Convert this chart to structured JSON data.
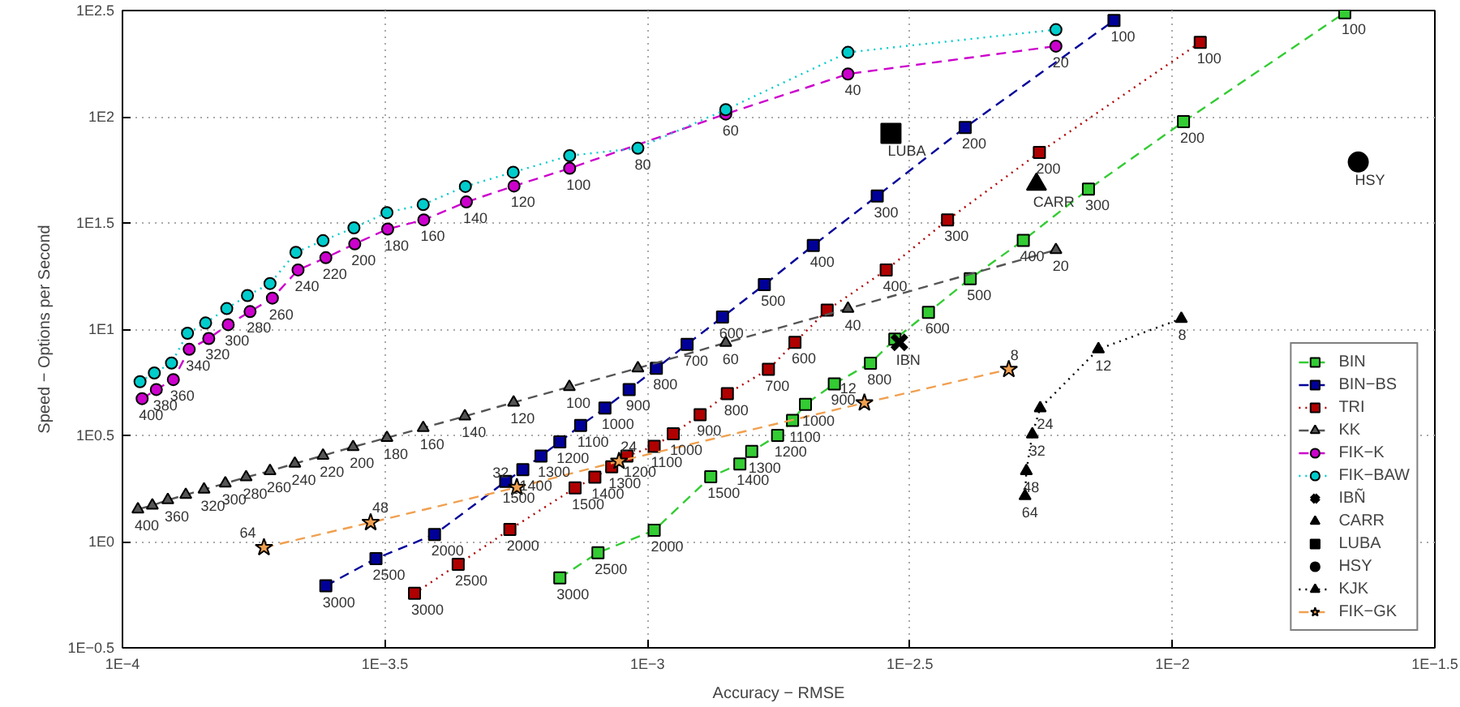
{
  "chart_data": {
    "type": "line",
    "xlabel": "Accuracy − RMSE",
    "ylabel": "Speed − Options per Second",
    "log": "xy",
    "xlim": [
      0.0001,
      0.0316228
    ],
    "ylim": [
      0.316228,
      316.228
    ],
    "xticks": [
      {
        "value": 0.0001,
        "label": "1E−4"
      },
      {
        "value": 0.000316228,
        "label": "1E−3.5"
      },
      {
        "value": 0.001,
        "label": "1E−3"
      },
      {
        "value": 0.00316228,
        "label": "1E−2.5"
      },
      {
        "value": 0.01,
        "label": "1E−2"
      },
      {
        "value": 0.0316228,
        "label": "1E−1.5"
      }
    ],
    "yticks": [
      {
        "value": 0.316228,
        "label": "1E−0.5"
      },
      {
        "value": 1,
        "label": "1E0"
      },
      {
        "value": 3.16228,
        "label": "1E0.5"
      },
      {
        "value": 10,
        "label": "1E1"
      },
      {
        "value": 31.6228,
        "label": "1E1.5"
      },
      {
        "value": 100,
        "label": "1E2"
      },
      {
        "value": 316.228,
        "label": "1E2.5"
      }
    ],
    "grid": true,
    "legend": "bottom right",
    "series": [
      {
        "name": "BIN",
        "type": "line",
        "marker": "square",
        "line_style": "dashed",
        "color": "#33cc33",
        "x": [
          0.000681,
          0.000805,
          0.00103,
          0.00132,
          0.0015,
          0.00158,
          0.00177,
          0.00189,
          0.002,
          0.00227,
          0.00266,
          0.00296,
          0.00343,
          0.00412,
          0.0052,
          0.00692,
          0.0105,
          0.0213
        ],
        "values": [
          0.675,
          0.887,
          1.13,
          2.02,
          2.32,
          2.66,
          3.16,
          3.72,
          4.43,
          5.53,
          6.92,
          8.97,
          12.0,
          17.3,
          26.2,
          45.6,
          94.8,
          309
        ]
      },
      {
        "name": "BIN−BS",
        "type": "line",
        "marker": "square",
        "line_style": "dashed",
        "color": "#000099",
        "x": [
          0.000244,
          0.000304,
          0.000393,
          0.000537,
          0.000579,
          0.000627,
          0.000681,
          0.000746,
          0.00083,
          0.000923,
          0.00104,
          0.00119,
          0.00139,
          0.00167,
          0.00207,
          0.00274,
          0.00403,
          0.00774
        ],
        "values": [
          0.619,
          0.832,
          1.08,
          1.92,
          2.18,
          2.53,
          2.95,
          3.52,
          4.25,
          5.2,
          6.55,
          8.49,
          11.4,
          16.2,
          24.8,
          42.4,
          89.1,
          284
        ]
      },
      {
        "name": "TRI",
        "type": "line",
        "marker": "square",
        "line_style": "dotted",
        "color": "#b00000",
        "x": [
          0.00036,
          0.000436,
          0.000547,
          0.000728,
          0.000794,
          0.000855,
          0.000914,
          0.00103,
          0.00112,
          0.00126,
          0.00142,
          0.0017,
          0.00191,
          0.0022,
          0.00285,
          0.00373,
          0.00558,
          0.0113
        ],
        "values": [
          0.571,
          0.782,
          1.14,
          1.79,
          2.01,
          2.25,
          2.53,
          2.81,
          3.22,
          3.96,
          4.97,
          6.47,
          8.67,
          12.3,
          19.0,
          32.7,
          67.9,
          224
        ]
      },
      {
        "name": "KK",
        "type": "line",
        "marker": "triangle",
        "line_style": "dashed",
        "color": "#555555",
        "x": [
          0.000107,
          0.000114,
          0.000122,
          0.000132,
          0.000143,
          0.000157,
          0.000172,
          0.000191,
          0.000213,
          0.000241,
          0.000275,
          0.000319,
          0.000374,
          0.000449,
          0.000556,
          0.00071,
          0.000959,
          0.00141,
          0.00241,
          0.006
        ],
        "values": [
          1.42,
          1.48,
          1.57,
          1.66,
          1.76,
          1.88,
          2.01,
          2.15,
          2.33,
          2.54,
          2.79,
          3.08,
          3.43,
          3.89,
          4.52,
          5.35,
          6.55,
          8.63,
          12.5,
          23.6
        ]
      },
      {
        "name": "FIK−K",
        "type": "line",
        "marker": "circle",
        "line_style": "dashed",
        "color": "#cc00cc",
        "x": [
          0.000109,
          0.000116,
          0.000125,
          0.000134,
          0.000146,
          0.000159,
          0.000175,
          0.000193,
          0.000216,
          0.000244,
          0.000277,
          0.00032,
          0.000375,
          0.000452,
          0.000557,
          0.000711,
          0.00141,
          0.00241,
          0.006
        ],
        "values": [
          4.71,
          5.2,
          5.79,
          8.04,
          9.04,
          10.5,
          12.1,
          14.0,
          19.0,
          21.7,
          25.2,
          29.6,
          32.7,
          39.7,
          47.2,
          57.2,
          103,
          159,
          215
        ]
      },
      {
        "name": "FIK−BAW",
        "type": "line",
        "marker": "circle",
        "line_style": "dotted",
        "color": "#00cccc",
        "x": [
          0.000108,
          0.000115,
          0.000124,
          0.000133,
          0.000144,
          0.000158,
          0.000173,
          0.000191,
          0.000214,
          0.000241,
          0.000276,
          0.000319,
          0.000374,
          0.00045,
          0.000555,
          0.000711,
          0.000959,
          0.00141,
          0.00241,
          0.006
        ],
        "values": [
          5.66,
          6.22,
          6.93,
          9.57,
          10.7,
          12.5,
          14.4,
          16.4,
          23.0,
          26.1,
          30.0,
          35.4,
          38.6,
          47.0,
          54.8,
          65.6,
          71.1,
          108,
          201,
          257
        ]
      },
      {
        "name": "IBÑ",
        "type": "scatter",
        "marker": "cross",
        "color": "#000000",
        "x": [
          0.00302
        ],
        "values": [
          8.67
        ]
      },
      {
        "name": "CARR",
        "type": "scatter",
        "marker": "triangle",
        "color": "#000000",
        "x": [
          0.00551
        ],
        "values": [
          48.1
        ]
      },
      {
        "name": "LUBA",
        "type": "scatter",
        "marker": "square",
        "color": "#000000",
        "x": [
          0.00291
        ],
        "values": [
          83.6
        ]
      },
      {
        "name": "HSY",
        "type": "scatter",
        "marker": "circle",
        "color": "#000000",
        "x": [
          0.0226
        ],
        "values": [
          61.2
        ]
      },
      {
        "name": "KJK",
        "type": "line",
        "marker": "triangle",
        "line_style": "dotted",
        "color": "#000000",
        "x": [
          0.00524,
          0.00527,
          0.00541,
          0.0056,
          0.00723,
          0.0104
        ],
        "values": [
          1.64,
          2.15,
          3.2,
          4.25,
          8.05,
          11.2
        ]
      },
      {
        "name": "FIK−GK",
        "type": "line",
        "marker": "star",
        "line_style": "dashed",
        "color": "#f0a050",
        "x": [
          0.000186,
          0.000297,
          0.000564,
          0.000883,
          0.00259,
          0.00488
        ],
        "values": [
          0.938,
          1.23,
          1.8,
          2.39,
          4.5,
          6.47
        ]
      }
    ],
    "annotations": [
      {
        "text": "3000",
        "x": 0.000681,
        "y": 0.675
      },
      {
        "text": "2500",
        "x": 0.000805,
        "y": 0.887
      },
      {
        "text": "2000",
        "x": 0.00103,
        "y": 1.13
      },
      {
        "text": "1500",
        "x": 0.00132,
        "y": 2.02
      },
      {
        "text": "1400",
        "x": 0.0015,
        "y": 2.32
      },
      {
        "text": "1300",
        "x": 0.00158,
        "y": 2.66
      },
      {
        "text": "1200",
        "x": 0.00177,
        "y": 3.16
      },
      {
        "text": "1100",
        "x": 0.00189,
        "y": 3.72
      },
      {
        "text": "1000",
        "x": 0.002,
        "y": 4.43
      },
      {
        "text": "900",
        "x": 0.00227,
        "y": 5.53
      },
      {
        "text": "800",
        "x": 0.00266,
        "y": 6.92
      },
      {
        "text": "600",
        "x": 0.00343,
        "y": 12.0
      },
      {
        "text": "500",
        "x": 0.00412,
        "y": 17.3
      },
      {
        "text": "400",
        "x": 0.0052,
        "y": 26.2
      },
      {
        "text": "300",
        "x": 0.00692,
        "y": 45.6
      },
      {
        "text": "200",
        "x": 0.0105,
        "y": 94.8
      },
      {
        "text": "100",
        "x": 0.0213,
        "y": 309
      },
      {
        "text": "3000",
        "x": 0.000244,
        "y": 0.619
      },
      {
        "text": "2500",
        "x": 0.000304,
        "y": 0.832
      },
      {
        "text": "2000",
        "x": 0.000393,
        "y": 1.08
      },
      {
        "text": "1500",
        "x": 0.000537,
        "y": 1.92
      },
      {
        "text": "1400",
        "x": 0.000579,
        "y": 2.18
      },
      {
        "text": "1300",
        "x": 0.000627,
        "y": 2.53
      },
      {
        "text": "1200",
        "x": 0.000681,
        "y": 2.95
      },
      {
        "text": "1100",
        "x": 0.000746,
        "y": 3.52
      },
      {
        "text": "1000",
        "x": 0.00083,
        "y": 4.25
      },
      {
        "text": "900",
        "x": 0.000923,
        "y": 5.2
      },
      {
        "text": "800",
        "x": 0.00104,
        "y": 6.55
      },
      {
        "text": "700",
        "x": 0.00119,
        "y": 8.49
      },
      {
        "text": "600",
        "x": 0.00139,
        "y": 11.4
      },
      {
        "text": "500",
        "x": 0.00167,
        "y": 16.2
      },
      {
        "text": "400",
        "x": 0.00207,
        "y": 24.8
      },
      {
        "text": "300",
        "x": 0.00274,
        "y": 42.4
      },
      {
        "text": "200",
        "x": 0.00403,
        "y": 89.1
      },
      {
        "text": "100",
        "x": 0.00774,
        "y": 284
      },
      {
        "text": "3000",
        "x": 0.00036,
        "y": 0.571
      },
      {
        "text": "2500",
        "x": 0.000436,
        "y": 0.782
      },
      {
        "text": "2000",
        "x": 0.000547,
        "y": 1.14
      },
      {
        "text": "1500",
        "x": 0.000728,
        "y": 1.79
      },
      {
        "text": "1400",
        "x": 0.000794,
        "y": 2.01
      },
      {
        "text": "1300",
        "x": 0.000855,
        "y": 2.25
      },
      {
        "text": "1200",
        "x": 0.000914,
        "y": 2.53
      },
      {
        "text": "1100",
        "x": 0.00103,
        "y": 2.81
      },
      {
        "text": "1000",
        "x": 0.00112,
        "y": 3.22
      },
      {
        "text": "900",
        "x": 0.00126,
        "y": 3.96
      },
      {
        "text": "800",
        "x": 0.00142,
        "y": 4.97
      },
      {
        "text": "700",
        "x": 0.0017,
        "y": 6.47
      },
      {
        "text": "600",
        "x": 0.00191,
        "y": 8.67
      },
      {
        "text": "400",
        "x": 0.00285,
        "y": 19.0
      },
      {
        "text": "300",
        "x": 0.00373,
        "y": 32.7
      },
      {
        "text": "200",
        "x": 0.00558,
        "y": 67.9
      },
      {
        "text": "100",
        "x": 0.0113,
        "y": 224
      },
      {
        "text": "400",
        "x": 0.000107,
        "y": 1.42
      },
      {
        "text": "360",
        "x": 0.000122,
        "y": 1.57
      },
      {
        "text": "320",
        "x": 0.000143,
        "y": 1.76
      },
      {
        "text": "300",
        "x": 0.000157,
        "y": 1.88
      },
      {
        "text": "280",
        "x": 0.000172,
        "y": 2.01
      },
      {
        "text": "260",
        "x": 0.000191,
        "y": 2.15
      },
      {
        "text": "240",
        "x": 0.000213,
        "y": 2.33
      },
      {
        "text": "220",
        "x": 0.000241,
        "y": 2.54
      },
      {
        "text": "200",
        "x": 0.000275,
        "y": 2.79
      },
      {
        "text": "180",
        "x": 0.000319,
        "y": 3.08
      },
      {
        "text": "160",
        "x": 0.000374,
        "y": 3.43
      },
      {
        "text": "140",
        "x": 0.000449,
        "y": 3.89
      },
      {
        "text": "120",
        "x": 0.000556,
        "y": 4.52
      },
      {
        "text": "100",
        "x": 0.00071,
        "y": 5.35
      },
      {
        "text": "60",
        "x": 0.00141,
        "y": 8.63
      },
      {
        "text": "40",
        "x": 0.00241,
        "y": 12.5
      },
      {
        "text": "20",
        "x": 0.006,
        "y": 23.6
      },
      {
        "text": "400",
        "x": 0.000109,
        "y": 4.71
      },
      {
        "text": "380",
        "x": 0.000116,
        "y": 5.2
      },
      {
        "text": "360",
        "x": 0.000125,
        "y": 5.79
      },
      {
        "text": "340",
        "x": 0.000134,
        "y": 8.04
      },
      {
        "text": "320",
        "x": 0.000146,
        "y": 9.04
      },
      {
        "text": "300",
        "x": 0.000159,
        "y": 10.5
      },
      {
        "text": "280",
        "x": 0.000175,
        "y": 12.1
      },
      {
        "text": "260",
        "x": 0.000193,
        "y": 14.0
      },
      {
        "text": "240",
        "x": 0.000216,
        "y": 19.0
      },
      {
        "text": "220",
        "x": 0.000244,
        "y": 21.7
      },
      {
        "text": "200",
        "x": 0.000277,
        "y": 25.2
      },
      {
        "text": "180",
        "x": 0.00032,
        "y": 29.6
      },
      {
        "text": "160",
        "x": 0.000375,
        "y": 32.7
      },
      {
        "text": "140",
        "x": 0.000452,
        "y": 39.7
      },
      {
        "text": "120",
        "x": 0.000557,
        "y": 47.2
      },
      {
        "text": "100",
        "x": 0.000711,
        "y": 57.2
      },
      {
        "text": "80",
        "x": 0.000959,
        "y": 71.1
      },
      {
        "text": "60",
        "x": 0.00141,
        "y": 103
      },
      {
        "text": "40",
        "x": 0.00241,
        "y": 159
      },
      {
        "text": "20",
        "x": 0.006,
        "y": 215
      },
      {
        "text": "IBN",
        "x": 0.00302,
        "y": 8.67
      },
      {
        "text": "CARR",
        "x": 0.00551,
        "y": 48.1
      },
      {
        "text": "LUBA",
        "x": 0.00291,
        "y": 83.6
      },
      {
        "text": "HSY",
        "x": 0.0226,
        "y": 61.2
      },
      {
        "text": "64",
        "x": 0.00524,
        "y": 1.64
      },
      {
        "text": "48",
        "x": 0.00527,
        "y": 2.15
      },
      {
        "text": "32",
        "x": 0.00541,
        "y": 3.2
      },
      {
        "text": "24",
        "x": 0.0056,
        "y": 4.25
      },
      {
        "text": "12",
        "x": 0.00723,
        "y": 8.05
      },
      {
        "text": "8",
        "x": 0.0104,
        "y": 11.2
      },
      {
        "text": "64",
        "x": 0.000186,
        "y": 0.938
      },
      {
        "text": "48",
        "x": 0.000297,
        "y": 1.23
      },
      {
        "text": "32",
        "x": 0.000564,
        "y": 1.8
      },
      {
        "text": "24",
        "x": 0.000883,
        "y": 2.39
      },
      {
        "text": "12",
        "x": 0.00259,
        "y": 4.5
      },
      {
        "text": "8",
        "x": 0.00488,
        "y": 6.47
      }
    ]
  }
}
